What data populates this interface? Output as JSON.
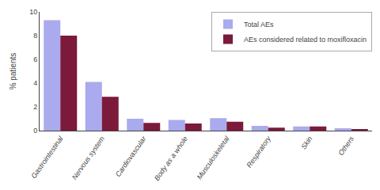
{
  "chart_data": {
    "type": "bar",
    "categories": [
      "Gastrointestinal",
      "Nervous system",
      "Cardiovascular",
      "Body as a whole",
      "Musculoskeletal",
      "Respiratory",
      "Skin",
      "Others"
    ],
    "series": [
      {
        "name": "Total AEs",
        "color": "#aaaaee",
        "values": [
          9.3,
          4.1,
          1.0,
          0.9,
          1.05,
          0.4,
          0.35,
          0.2
        ]
      },
      {
        "name": "AEs considered related to moxifloxacin",
        "color": "#7b1a3a",
        "values": [
          8.0,
          2.85,
          0.65,
          0.6,
          0.75,
          0.25,
          0.35,
          0.1
        ]
      }
    ],
    "ylabel": "% patients",
    "ylim": [
      0,
      10
    ],
    "yticks": [
      0,
      2,
      4,
      6,
      8,
      10
    ],
    "grid": false,
    "legend": "upper right"
  }
}
